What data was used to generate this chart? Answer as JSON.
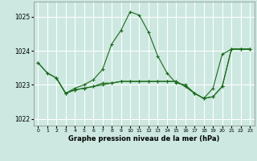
{
  "background_color": "#cce8e0",
  "grid_color": "#ffffff",
  "line_color": "#1a6b1a",
  "ylim": [
    1021.8,
    1025.45
  ],
  "yticks": [
    1022,
    1023,
    1024,
    1025
  ],
  "xlim": [
    -0.5,
    23.5
  ],
  "xticks": [
    0,
    1,
    2,
    3,
    4,
    5,
    6,
    7,
    8,
    9,
    10,
    11,
    12,
    13,
    14,
    15,
    16,
    17,
    18,
    19,
    20,
    21,
    22,
    23
  ],
  "xlabel": "Graphe pression niveau de la mer (hPa)",
  "line_high_x": [
    0,
    1,
    2,
    3,
    4,
    5,
    6,
    7,
    8,
    9,
    10,
    11,
    12,
    13,
    14,
    15,
    16,
    17,
    18,
    19,
    20,
    21,
    22,
    23
  ],
  "line_high_y": [
    1023.65,
    1023.35,
    1023.2,
    1022.75,
    1022.9,
    1023.0,
    1023.15,
    1023.45,
    1024.2,
    1024.6,
    1025.15,
    1025.05,
    1024.55,
    1023.85,
    1023.35,
    1023.05,
    1023.0,
    1022.75,
    1022.6,
    1022.9,
    1023.9,
    1024.05,
    1024.05,
    1024.05
  ],
  "line_low_x": [
    0,
    1,
    2,
    3,
    4,
    5,
    6,
    7,
    8,
    9,
    10,
    11,
    12,
    13,
    14,
    15,
    16,
    17,
    18,
    19,
    20,
    21,
    22,
    23
  ],
  "line_low_y": [
    1023.65,
    1023.35,
    1023.2,
    1022.75,
    1022.85,
    1022.9,
    1022.95,
    1023.05,
    1023.05,
    1023.1,
    1023.1,
    1023.1,
    1023.1,
    1023.1,
    1023.1,
    1023.1,
    1022.95,
    1022.75,
    1022.6,
    1022.65,
    1022.95,
    1024.05,
    1024.05,
    1024.05
  ],
  "line_mid_x": [
    2,
    3,
    4,
    5,
    6,
    7,
    8,
    9,
    10,
    11,
    12,
    13,
    14,
    15,
    16,
    17,
    18,
    19,
    20,
    21,
    22,
    23
  ],
  "line_mid_y": [
    1023.2,
    1022.75,
    1022.85,
    1022.9,
    1022.95,
    1023.0,
    1023.05,
    1023.1,
    1023.1,
    1023.1,
    1023.1,
    1023.1,
    1023.1,
    1023.1,
    1022.95,
    1022.75,
    1022.6,
    1022.65,
    1022.95,
    1024.05,
    1024.05,
    1024.05
  ]
}
